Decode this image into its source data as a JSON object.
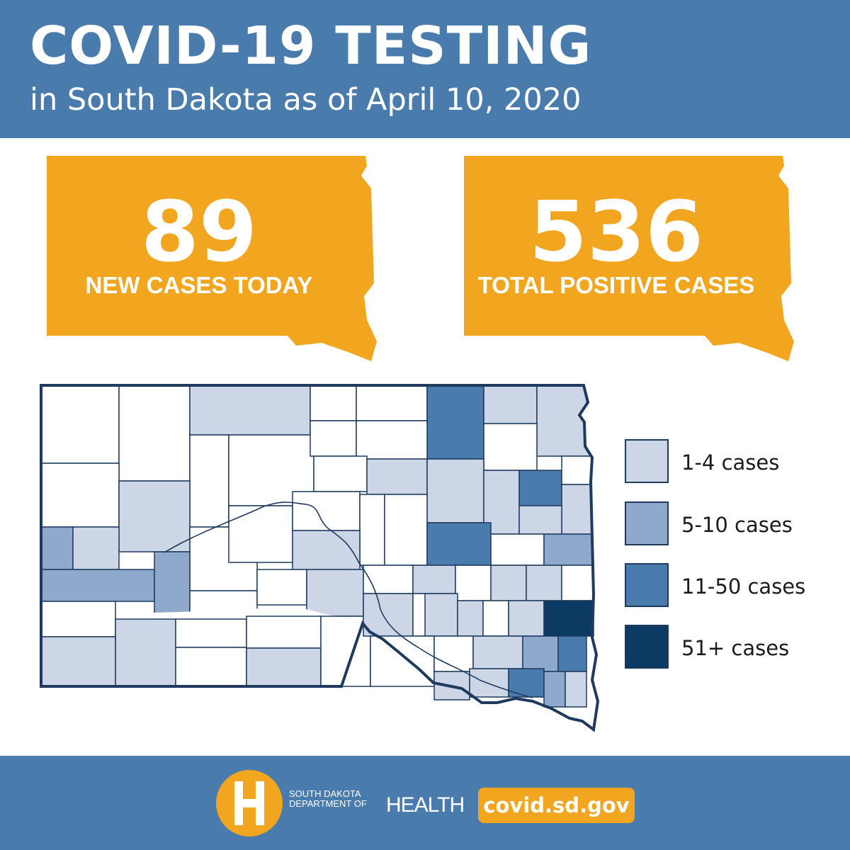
{
  "header": {
    "title": "COVID-19 TESTING",
    "subtitle": "in South Dakota as of April 10, 2020"
  },
  "stats": {
    "new_cases": {
      "value": "89",
      "label": "NEW CASES TODAY"
    },
    "total_cases": {
      "value": "536",
      "label": "TOTAL POSITIVE CASES"
    }
  },
  "legend": {
    "items": [
      {
        "label": "1-4 cases",
        "color": "#cdd6e6"
      },
      {
        "label": "5-10 cases",
        "color": "#8fa9cc"
      },
      {
        "label": "11-50 cases",
        "color": "#4a7bad"
      },
      {
        "label": "51+ cases",
        "color": "#0d3a63"
      }
    ]
  },
  "colors": {
    "header_blue": "#4a7bad",
    "accent_orange": "#f2a61f",
    "map_border": "#1e3a5f",
    "no_cases": "#ffffff"
  },
  "footer": {
    "org_line1": "SOUTH DAKOTA",
    "org_line2": "DEPARTMENT OF",
    "org_big": "HEALTH",
    "website": "covid.sd.gov"
  }
}
